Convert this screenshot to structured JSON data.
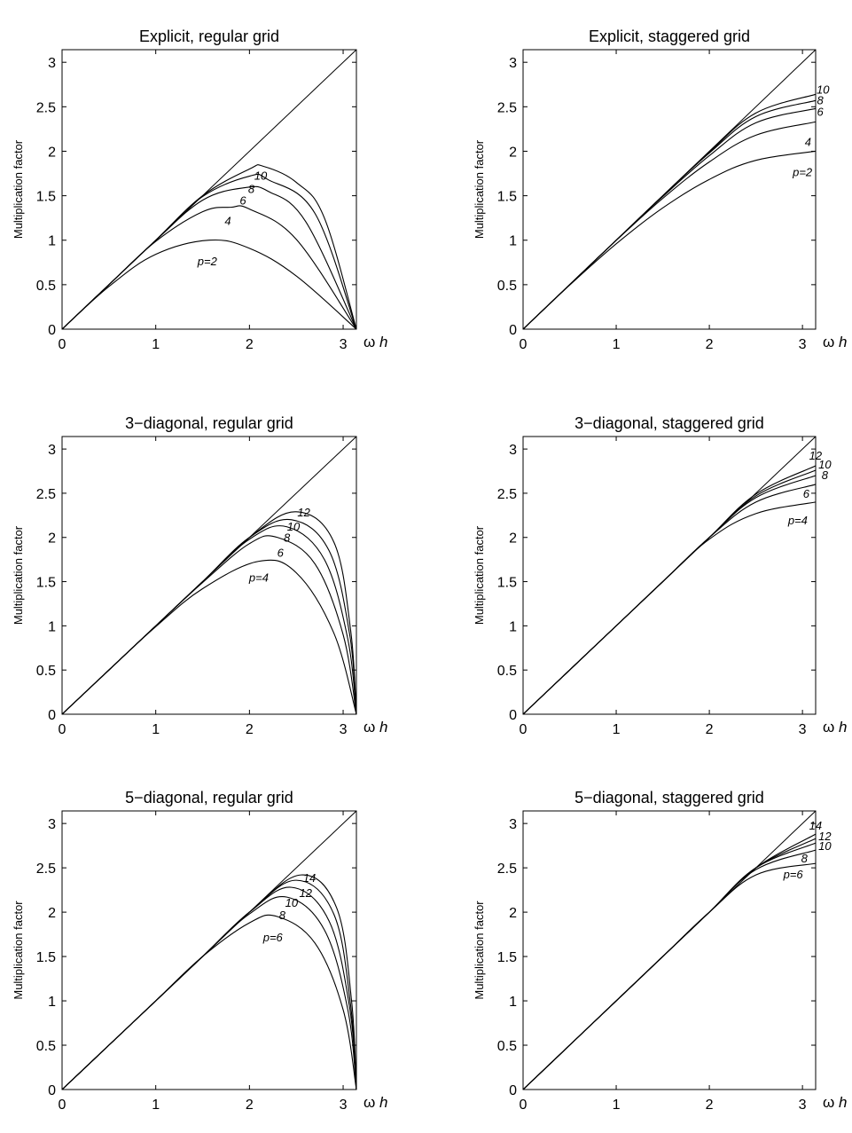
{
  "chart_data": [
    {
      "type": "line",
      "title": "Explicit, regular grid",
      "xlabel": "ω h",
      "ylabel": "Multiplication factor",
      "xlim": [
        0,
        3.1416
      ],
      "ylim": [
        0,
        3.1416
      ],
      "xticks": [
        "0",
        "1",
        "2",
        "3"
      ],
      "yticks": [
        "0",
        "0.5",
        "1",
        "1.5",
        "2",
        "2.5",
        "3"
      ],
      "reference_line": "y = x",
      "series": [
        {
          "name": "p=2",
          "x": [
            0,
            0.5,
            1.0,
            1.5708,
            2.0,
            2.5,
            3.1416
          ],
          "values": [
            0,
            0.479,
            0.841,
            1.0,
            0.909,
            0.598,
            0
          ]
        },
        {
          "name": "4",
          "x": [
            0,
            0.5,
            1.0,
            1.5,
            1.8,
            2.0,
            2.5,
            3.1416
          ],
          "values": [
            0,
            0.499,
            0.987,
            1.32,
            1.37,
            1.35,
            1.01,
            0
          ]
        },
        {
          "name": "6",
          "x": [
            0,
            0.5,
            1.0,
            1.5,
            1.95,
            2.2,
            2.6,
            3.1416
          ],
          "values": [
            0,
            0.5,
            0.998,
            1.45,
            1.59,
            1.55,
            1.21,
            0
          ]
        },
        {
          "name": "8",
          "x": [
            0,
            0.5,
            1.0,
            1.5,
            2.0,
            2.2,
            2.7,
            3.1416
          ],
          "values": [
            0,
            0.5,
            1.0,
            1.49,
            1.72,
            1.68,
            1.3,
            0
          ]
        },
        {
          "name": "10",
          "x": [
            0,
            0.5,
            1.0,
            1.5,
            2.0,
            2.15,
            2.5,
            2.8,
            3.1416
          ],
          "values": [
            0,
            0.5,
            1.0,
            1.5,
            1.8,
            1.83,
            1.65,
            1.25,
            0
          ]
        }
      ],
      "annotations": [
        "p=2",
        "4",
        "6",
        "8",
        "10"
      ]
    },
    {
      "type": "line",
      "title": "Explicit, staggered grid",
      "xlabel": "ω h",
      "ylabel": "Multiplication factor",
      "xlim": [
        0,
        3.1416
      ],
      "ylim": [
        0,
        3.1416
      ],
      "xticks": [
        "0",
        "1",
        "2",
        "3"
      ],
      "yticks": [
        "0",
        "0.5",
        "1",
        "1.5",
        "2",
        "2.5",
        "3"
      ],
      "reference_line": "y = x",
      "series": [
        {
          "name": "p=2",
          "x": [
            0,
            0.5,
            1.0,
            1.5,
            2.0,
            2.5,
            3.1416
          ],
          "values": [
            0,
            0.495,
            0.959,
            1.363,
            1.683,
            1.898,
            2.0
          ]
        },
        {
          "name": "4",
          "x": [
            0,
            0.5,
            1.0,
            1.5,
            2.0,
            2.5,
            3.1416
          ],
          "values": [
            0,
            0.5,
            0.997,
            1.47,
            1.88,
            2.18,
            2.33
          ]
        },
        {
          "name": "6",
          "x": [
            0,
            0.5,
            1.0,
            1.5,
            2.0,
            2.5,
            3.1416
          ],
          "values": [
            0,
            0.5,
            1.0,
            1.49,
            1.95,
            2.32,
            2.48
          ]
        },
        {
          "name": "8",
          "x": [
            0,
            0.5,
            1.0,
            1.5,
            2.0,
            2.5,
            3.1416
          ],
          "values": [
            0,
            0.5,
            1.0,
            1.5,
            1.98,
            2.39,
            2.57
          ]
        },
        {
          "name": "10",
          "x": [
            0,
            0.5,
            1.0,
            1.5,
            2.0,
            2.5,
            3.1416
          ],
          "values": [
            0,
            0.5,
            1.0,
            1.5,
            1.99,
            2.43,
            2.64
          ]
        }
      ],
      "annotations": [
        "p=2",
        "4",
        "6",
        "8",
        "10"
      ]
    },
    {
      "type": "line",
      "title": "3−diagonal, regular grid",
      "xlabel": "ω h",
      "ylabel": "Multiplication factor",
      "xlim": [
        0,
        3.1416
      ],
      "ylim": [
        0,
        3.1416
      ],
      "xticks": [
        "0",
        "1",
        "2",
        "3"
      ],
      "yticks": [
        "0",
        "0.5",
        "1",
        "1.5",
        "2",
        "2.5",
        "3"
      ],
      "reference_line": "y = x",
      "series": [
        {
          "name": "p=4",
          "x": [
            0,
            0.5,
            1.0,
            1.5,
            2.1,
            2.5,
            2.9,
            3.1416
          ],
          "values": [
            0,
            0.5,
            0.99,
            1.42,
            1.73,
            1.6,
            0.92,
            0
          ]
        },
        {
          "name": "6",
          "x": [
            0,
            0.5,
            1.0,
            1.5,
            2.0,
            2.3,
            2.7,
            3.0,
            3.1416
          ],
          "values": [
            0,
            0.5,
            1.0,
            1.49,
            1.93,
            2.0,
            1.7,
            0.9,
            0
          ]
        },
        {
          "name": "8",
          "x": [
            0,
            0.5,
            1.0,
            1.5,
            2.0,
            2.4,
            2.8,
            3.05,
            3.1416
          ],
          "values": [
            0,
            0.5,
            1.0,
            1.5,
            1.98,
            2.12,
            1.75,
            0.85,
            0
          ]
        },
        {
          "name": "10",
          "x": [
            0,
            0.5,
            1.0,
            1.5,
            2.0,
            2.45,
            2.85,
            3.07,
            3.1416
          ],
          "values": [
            0,
            0.5,
            1.0,
            1.5,
            2.0,
            2.2,
            1.85,
            0.9,
            0
          ]
        },
        {
          "name": "12",
          "x": [
            0,
            0.5,
            1.0,
            1.5,
            2.0,
            2.5,
            2.9,
            3.08,
            3.1416
          ],
          "values": [
            0,
            0.5,
            1.0,
            1.5,
            2.0,
            2.29,
            1.95,
            0.95,
            0
          ]
        }
      ],
      "annotations": [
        "p=4",
        "6",
        "8",
        "10",
        "12"
      ]
    },
    {
      "type": "line",
      "title": "3−diagonal, staggered grid",
      "xlabel": "ω h",
      "ylabel": "Multiplication factor",
      "xlim": [
        0,
        3.1416
      ],
      "ylim": [
        0,
        3.1416
      ],
      "xticks": [
        "0",
        "1",
        "2",
        "3"
      ],
      "yticks": [
        "0",
        "0.5",
        "1",
        "1.5",
        "2",
        "2.5",
        "3"
      ],
      "reference_line": "y = x",
      "series": [
        {
          "name": "p=4",
          "x": [
            0,
            0.5,
            1.0,
            1.5,
            2.0,
            2.5,
            3.1416
          ],
          "values": [
            0,
            0.5,
            1.0,
            1.5,
            1.98,
            2.27,
            2.4
          ]
        },
        {
          "name": "6",
          "x": [
            0,
            0.5,
            1.0,
            1.5,
            2.0,
            2.5,
            3.1416
          ],
          "values": [
            0,
            0.5,
            1.0,
            1.5,
            2.0,
            2.4,
            2.6
          ]
        },
        {
          "name": "8",
          "x": [
            0,
            0.5,
            1.0,
            1.5,
            2.0,
            2.5,
            3.1416
          ],
          "values": [
            0,
            0.5,
            1.0,
            1.5,
            2.0,
            2.45,
            2.7
          ]
        },
        {
          "name": "10",
          "x": [
            0,
            0.5,
            1.0,
            1.5,
            2.0,
            2.5,
            3.1416
          ],
          "values": [
            0,
            0.5,
            1.0,
            1.5,
            2.0,
            2.47,
            2.76
          ]
        },
        {
          "name": "12",
          "x": [
            0,
            0.5,
            1.0,
            1.5,
            2.0,
            2.5,
            3.1416
          ],
          "values": [
            0,
            0.5,
            1.0,
            1.5,
            2.0,
            2.49,
            2.81
          ]
        }
      ],
      "annotations": [
        "p=4",
        "6",
        "8",
        "10",
        "12"
      ]
    },
    {
      "type": "line",
      "title": "5−diagonal, regular grid",
      "xlabel": "ω h",
      "ylabel": "Multiplication factor",
      "xlim": [
        0,
        3.1416
      ],
      "ylim": [
        0,
        3.1416
      ],
      "xticks": [
        "0",
        "1",
        "2",
        "3"
      ],
      "yticks": [
        "0",
        "0.5",
        "1",
        "1.5",
        "2",
        "2.5",
        "3"
      ],
      "reference_line": "y = x",
      "series": [
        {
          "name": "p=6",
          "x": [
            0,
            0.5,
            1.0,
            1.5,
            2.0,
            2.3,
            2.7,
            3.0,
            3.1416
          ],
          "values": [
            0,
            0.5,
            1.0,
            1.5,
            1.88,
            1.95,
            1.65,
            0.9,
            0
          ]
        },
        {
          "name": "8",
          "x": [
            0,
            0.5,
            1.0,
            1.5,
            2.0,
            2.4,
            2.8,
            3.05,
            3.1416
          ],
          "values": [
            0,
            0.5,
            1.0,
            1.5,
            1.98,
            2.17,
            1.8,
            0.9,
            0
          ]
        },
        {
          "name": "10",
          "x": [
            0,
            0.5,
            1.0,
            1.5,
            2.0,
            2.45,
            2.85,
            3.07,
            3.1416
          ],
          "values": [
            0,
            0.5,
            1.0,
            1.5,
            2.0,
            2.28,
            1.9,
            0.92,
            0
          ]
        },
        {
          "name": "12",
          "x": [
            0,
            0.5,
            1.0,
            1.5,
            2.0,
            2.5,
            2.9,
            3.08,
            3.1416
          ],
          "values": [
            0,
            0.5,
            1.0,
            1.5,
            2.0,
            2.36,
            1.98,
            0.95,
            0
          ]
        },
        {
          "name": "14",
          "x": [
            0,
            0.5,
            1.0,
            1.5,
            2.0,
            2.55,
            2.93,
            3.09,
            3.1416
          ],
          "values": [
            0,
            0.5,
            1.0,
            1.5,
            2.0,
            2.42,
            2.05,
            1.0,
            0
          ]
        }
      ],
      "annotations": [
        "p=6",
        "8",
        "10",
        "12",
        "14"
      ]
    },
    {
      "type": "line",
      "title": "5−diagonal, staggered grid",
      "xlabel": "ω h",
      "ylabel": "Multiplication factor",
      "xlim": [
        0,
        3.1416
      ],
      "ylim": [
        0,
        3.1416
      ],
      "xticks": [
        "0",
        "1",
        "2",
        "3"
      ],
      "yticks": [
        "0",
        "0.5",
        "1",
        "1.5",
        "2",
        "2.5",
        "3"
      ],
      "reference_line": "y = x",
      "series": [
        {
          "name": "p=6",
          "x": [
            0,
            0.5,
            1.0,
            1.5,
            2.0,
            2.5,
            3.1416
          ],
          "values": [
            0,
            0.5,
            1.0,
            1.5,
            2.0,
            2.42,
            2.55
          ]
        },
        {
          "name": "8",
          "x": [
            0,
            0.5,
            1.0,
            1.5,
            2.0,
            2.5,
            3.1416
          ],
          "values": [
            0,
            0.5,
            1.0,
            1.5,
            2.0,
            2.48,
            2.7
          ]
        },
        {
          "name": "10",
          "x": [
            0,
            0.5,
            1.0,
            1.5,
            2.0,
            2.5,
            3.1416
          ],
          "values": [
            0,
            0.5,
            1.0,
            1.5,
            2.0,
            2.5,
            2.78
          ]
        },
        {
          "name": "12",
          "x": [
            0,
            0.5,
            1.0,
            1.5,
            2.0,
            2.5,
            3.1416
          ],
          "values": [
            0,
            0.5,
            1.0,
            1.5,
            2.0,
            2.5,
            2.83
          ]
        },
        {
          "name": "14",
          "x": [
            0,
            0.5,
            1.0,
            1.5,
            2.0,
            2.5,
            3.1416
          ],
          "values": [
            0,
            0.5,
            1.0,
            1.5,
            2.0,
            2.5,
            2.88
          ]
        }
      ],
      "annotations": [
        "p=6",
        "8",
        "10",
        "12",
        "14"
      ]
    }
  ]
}
